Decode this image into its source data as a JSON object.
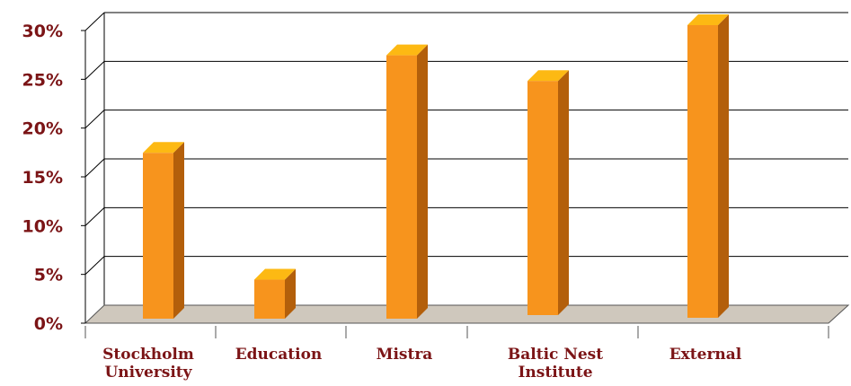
{
  "chart_data": {
    "type": "bar",
    "categories": [
      [
        "Stockholm",
        "University"
      ],
      [
        "Education"
      ],
      [
        "Mistra"
      ],
      [
        "Baltic Nest",
        "Institute"
      ],
      [
        "External"
      ]
    ],
    "values": [
      17,
      4,
      27,
      24,
      30
    ],
    "y_ticks": [
      "0%",
      "5%",
      "10%",
      "15%",
      "20%",
      "25%",
      "30%"
    ],
    "ylim": [
      0,
      30
    ],
    "grid": true,
    "style": "3d",
    "colors": {
      "bar_front": "#f7941d",
      "bar_top": "#fdb913",
      "bar_side": "#b35f0b",
      "floor": "#cfc8bd",
      "label_text": "#7b1416",
      "axis_line": "#000000"
    }
  }
}
